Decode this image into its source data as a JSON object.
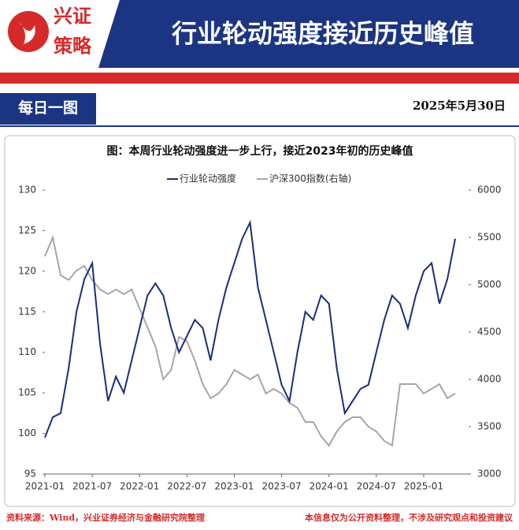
{
  "header": {
    "brand_top": "兴证",
    "brand_bottom": "策略",
    "title": "行业轮动强度接近历史峰值"
  },
  "section_label": "每日一图",
  "date": "2025年5月30日",
  "chart_data": {
    "type": "line",
    "title": "图：本周行业轮动强度进一步上行，接近2023年初的历史峰值",
    "x": [
      "2021-01",
      "2021-02",
      "2021-03",
      "2021-04",
      "2021-05",
      "2021-06",
      "2021-07",
      "2021-08",
      "2021-09",
      "2021-10",
      "2021-11",
      "2021-12",
      "2022-01",
      "2022-02",
      "2022-03",
      "2022-04",
      "2022-05",
      "2022-06",
      "2022-07",
      "2022-08",
      "2022-09",
      "2022-10",
      "2022-11",
      "2022-12",
      "2023-01",
      "2023-02",
      "2023-03",
      "2023-04",
      "2023-05",
      "2023-06",
      "2023-07",
      "2023-08",
      "2023-09",
      "2023-10",
      "2023-11",
      "2023-12",
      "2024-01",
      "2024-02",
      "2024-03",
      "2024-04",
      "2024-05",
      "2024-06",
      "2024-07",
      "2024-08",
      "2024-09",
      "2024-10",
      "2024-11",
      "2024-12",
      "2025-01",
      "2025-02",
      "2025-03",
      "2025-04",
      "2025-05"
    ],
    "xticks": [
      "2021-01",
      "2021-07",
      "2022-01",
      "2022-07",
      "2023-01",
      "2023-07",
      "2024-01",
      "2024-07",
      "2025-01"
    ],
    "series": [
      {
        "name": "行业轮动强度",
        "color": "#1b2d7a",
        "axis": "y",
        "values": [
          99.5,
          102,
          102.5,
          108,
          115,
          119,
          121,
          111,
          104,
          107,
          105,
          109,
          113,
          117,
          118.5,
          117,
          113,
          110,
          112,
          114,
          113,
          109,
          114,
          118,
          121,
          124,
          126,
          118,
          114,
          110,
          106,
          104,
          110,
          115,
          114,
          117,
          116,
          108,
          102.5,
          104,
          105.5,
          106,
          110,
          114,
          117,
          116,
          113,
          117,
          120,
          121,
          116,
          119,
          124
        ]
      },
      {
        "name": "沪深300指数(右轴)",
        "color": "#a6a6a6",
        "axis": "y2",
        "values": [
          5300,
          5500,
          5100,
          5050,
          5150,
          5200,
          5050,
          4950,
          4900,
          4950,
          4900,
          4950,
          4750,
          4550,
          4350,
          4000,
          4100,
          4450,
          4400,
          4200,
          3950,
          3800,
          3850,
          3950,
          4100,
          4050,
          4000,
          4050,
          3850,
          3900,
          3850,
          3750,
          3700,
          3550,
          3550,
          3400,
          3300,
          3450,
          3550,
          3600,
          3600,
          3500,
          3450,
          3350,
          3300,
          3950,
          3950,
          3950,
          3850,
          3900,
          3950,
          3800,
          3850
        ]
      }
    ],
    "ylim": [
      95,
      130
    ],
    "yticks": [
      95,
      100,
      105,
      110,
      115,
      120,
      125,
      130
    ],
    "y2lim": [
      3000,
      6000
    ],
    "y2ticks": [
      3000,
      3500,
      4000,
      4500,
      5000,
      5500,
      6000
    ]
  },
  "footer": {
    "source": "资料来源：Wind，兴业证券经济与金融研究院整理",
    "disclaimer": "本信息仅为公开资料整理，不涉及研究观点和投资建议"
  }
}
